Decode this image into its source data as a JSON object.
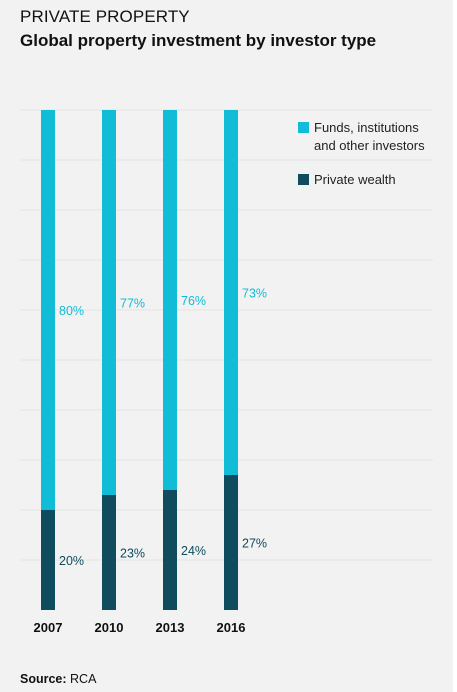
{
  "header": {
    "title_upper": "PRIVATE PROPERTY",
    "title_main": "Global property investment by investor type"
  },
  "source": {
    "label": "Source:",
    "value": "RCA"
  },
  "colors": {
    "funds": "#10bcd6",
    "private": "#0e4c5e",
    "funds_label": "#10bcd6",
    "private_label": "#0e4c5e",
    "grid": "#e4e4e4"
  },
  "chart_data": {
    "type": "bar",
    "stacked": true,
    "unit": "%",
    "categories": [
      "2007",
      "2010",
      "2013",
      "2016"
    ],
    "series": [
      {
        "name": "Private wealth",
        "values": [
          20,
          23,
          24,
          27
        ],
        "labels": [
          "20%",
          "23%",
          "24%",
          "27%"
        ]
      },
      {
        "name": "Funds, institutions and other investors",
        "values": [
          80,
          77,
          76,
          73
        ],
        "labels": [
          "80%",
          "77%",
          "76%",
          "73%"
        ]
      }
    ],
    "legend": [
      {
        "lines": [
          "Funds, institutions",
          "and other investors"
        ],
        "series": "Funds, institutions and other investors"
      },
      {
        "lines": [
          "Private wealth"
        ],
        "series": "Private wealth"
      }
    ],
    "ylim": [
      0,
      100
    ],
    "grid": true,
    "legend_position": "top-right",
    "title": "Global property investment by investor type"
  }
}
